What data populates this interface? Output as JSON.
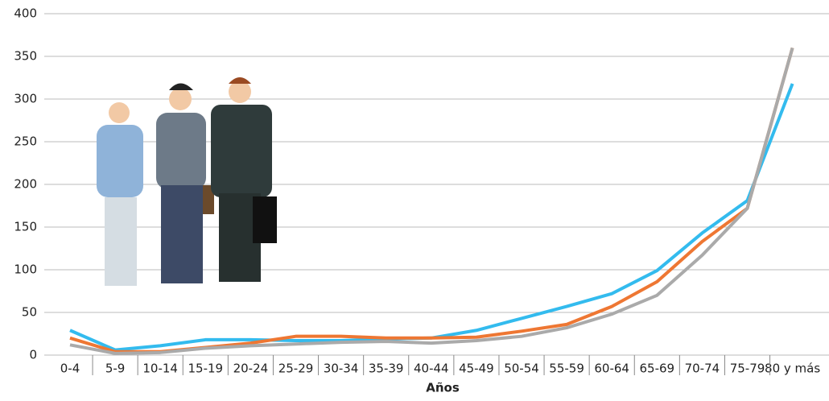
{
  "chart_data": {
    "type": "line",
    "x_label": "Años",
    "categories": [
      "0-4",
      "5-9",
      "10-14",
      "15-19",
      "20-24",
      "25-29",
      "30-34",
      "35-39",
      "40-44",
      "45-49",
      "50-54",
      "55-59",
      "60-64",
      "65-69",
      "70-74",
      "75-79",
      "80 y más"
    ],
    "series": [
      {
        "color": "#33bbee",
        "values": [
          29,
          6,
          11,
          18,
          18,
          17,
          17,
          19,
          20,
          29,
          43,
          57,
          72,
          99,
          143,
          181,
          318
        ]
      },
      {
        "color": "#ee7733",
        "values": [
          20,
          4,
          4,
          9,
          14,
          22,
          22,
          20,
          20,
          21,
          28,
          36,
          57,
          86,
          133,
          172,
          360
        ]
      },
      {
        "color": "#aaaaaa",
        "values": [
          12,
          2,
          3,
          8,
          11,
          13,
          15,
          16,
          14,
          17,
          22,
          32,
          48,
          70,
          117,
          172,
          360
        ]
      }
    ],
    "ylim": [
      0,
      400
    ],
    "yticks": [
      0,
      50,
      100,
      150,
      200,
      250,
      300,
      350,
      400
    ],
    "grid": true
  }
}
